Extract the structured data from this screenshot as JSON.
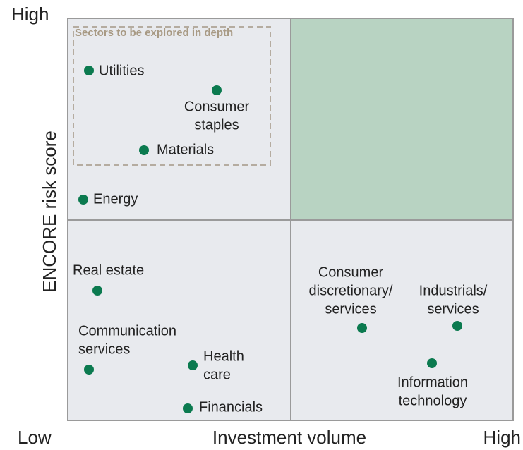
{
  "y_axis": {
    "label": "ENCORE risk score",
    "high": "High"
  },
  "x_axis": {
    "label": "Investment volume",
    "low": "Low",
    "high": "High"
  },
  "callout": "Sectors to be explored in depth",
  "sectors": [
    {
      "lines": [
        "Utilities"
      ]
    },
    {
      "lines": [
        "Consumer",
        "staples"
      ]
    },
    {
      "lines": [
        "Materials"
      ]
    },
    {
      "lines": [
        "Energy"
      ]
    },
    {
      "lines": [
        "Real estate"
      ]
    },
    {
      "lines": [
        "Communication",
        "services"
      ]
    },
    {
      "lines": [
        "Health",
        "care"
      ]
    },
    {
      "lines": [
        "Financials"
      ]
    },
    {
      "lines": [
        "Consumer",
        "discretionary/",
        "services"
      ]
    },
    {
      "lines": [
        "Industrials/",
        "services"
      ]
    },
    {
      "lines": [
        "Information",
        "technology"
      ]
    }
  ]
}
